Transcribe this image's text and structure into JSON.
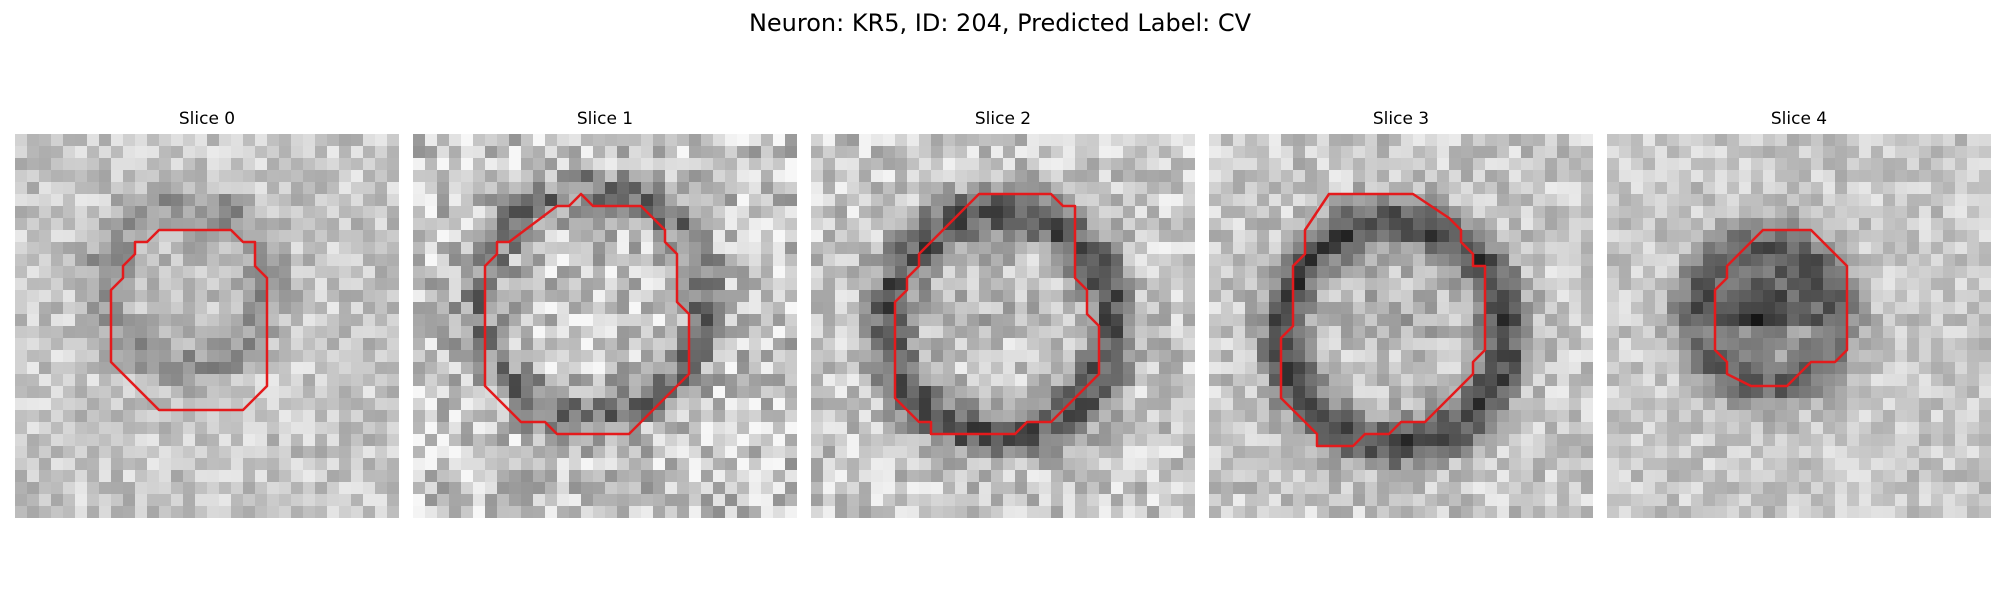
{
  "figure": {
    "title": "Neuron: KR5, ID: 204, Predicted Label: CV",
    "overlay_color": "#e41a1c"
  },
  "panels": [
    {
      "title": "Slice 0",
      "seed": 11,
      "dark_ring": 0.2,
      "dark_core": 0.05,
      "noise": 0.28
    },
    {
      "title": "Slice 1",
      "seed": 23,
      "dark_ring": 0.3,
      "dark_core": 0.0,
      "noise": 0.45
    },
    {
      "title": "Slice 2",
      "seed": 37,
      "dark_ring": 0.45,
      "dark_core": 0.05,
      "noise": 0.35
    },
    {
      "title": "Slice 3",
      "seed": 41,
      "dark_ring": 0.5,
      "dark_core": 0.1,
      "noise": 0.3
    },
    {
      "title": "Slice 4",
      "seed": 59,
      "dark_ring": 0.35,
      "dark_core": 0.6,
      "noise": 0.25
    }
  ]
}
